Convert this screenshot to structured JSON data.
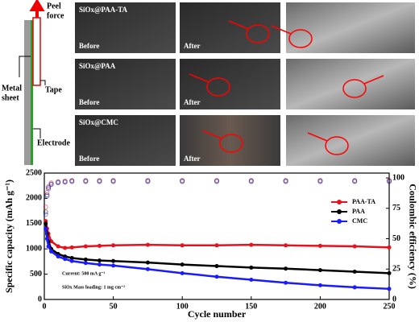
{
  "panel": {
    "peel_force": [
      "Peel",
      "force"
    ],
    "tape": "Tape",
    "metal_sheet": [
      "Metal",
      "sheet"
    ],
    "electrode": "Electrode",
    "rows": [
      {
        "title": "SiOx@PAA-TA",
        "before": "Before",
        "after": "After"
      },
      {
        "title": "SiOx@PAA",
        "before": "Before",
        "after": "After"
      },
      {
        "title": "SiOx@CMC",
        "before": "Before",
        "after": "After"
      }
    ]
  },
  "chart_data": {
    "type": "line",
    "xlabel": "Cycle number",
    "ylabel": "Specific capacity (mAh g⁻¹)",
    "y2label": "Coulombic efficiency (%)",
    "annotations": [
      "Current: 500 mA g⁻¹",
      "SiOx Mass loading: 1 mg cm⁻²"
    ],
    "x": [
      1,
      2,
      3,
      5,
      10,
      15,
      20,
      30,
      40,
      50,
      75,
      100,
      125,
      150,
      175,
      200,
      225,
      250
    ],
    "series": [
      {
        "name": "PAA-TA",
        "color": "#e8101a",
        "values": [
          1550,
          1400,
          1300,
          1150,
          1050,
          1020,
          1030,
          1050,
          1060,
          1070,
          1080,
          1070,
          1070,
          1080,
          1070,
          1060,
          1050,
          1030
        ],
        "efficiency": [
          76,
          88,
          93,
          96,
          97,
          97.5,
          98,
          98,
          98,
          98,
          98,
          98,
          98,
          98,
          98,
          98,
          98,
          98
        ]
      },
      {
        "name": "PAA",
        "color": "#000000",
        "values": [
          1500,
          1300,
          1150,
          1000,
          900,
          850,
          820,
          790,
          770,
          760,
          730,
          690,
          660,
          630,
          610,
          580,
          550,
          520
        ],
        "efficiency": [
          72,
          86,
          92,
          95,
          96.5,
          97,
          97.5,
          97.5,
          97.5,
          97.5,
          97.5,
          97.5,
          97.5,
          97.5,
          97.5,
          97.5,
          97.5,
          97.5
        ]
      },
      {
        "name": "CMC",
        "color": "#1a1aff",
        "values": [
          1400,
          1200,
          1050,
          950,
          850,
          800,
          760,
          720,
          690,
          670,
          600,
          520,
          450,
          390,
          330,
          280,
          240,
          210
        ],
        "efficiency": [
          70,
          85,
          91,
          94.5,
          96,
          96.5,
          97,
          97,
          97,
          97,
          97,
          97,
          97,
          97,
          97,
          97,
          97,
          97
        ]
      }
    ],
    "xlim": [
      0,
      250
    ],
    "xticks": [
      0,
      50,
      100,
      150,
      200,
      250
    ],
    "ylim": [
      0,
      2500
    ],
    "yticks": [
      0,
      500,
      1000,
      1500,
      2000,
      2500
    ],
    "y2lim": [
      0,
      104
    ],
    "y2ticks": [
      0,
      25,
      50,
      75,
      100
    ],
    "legend": "upper right"
  }
}
